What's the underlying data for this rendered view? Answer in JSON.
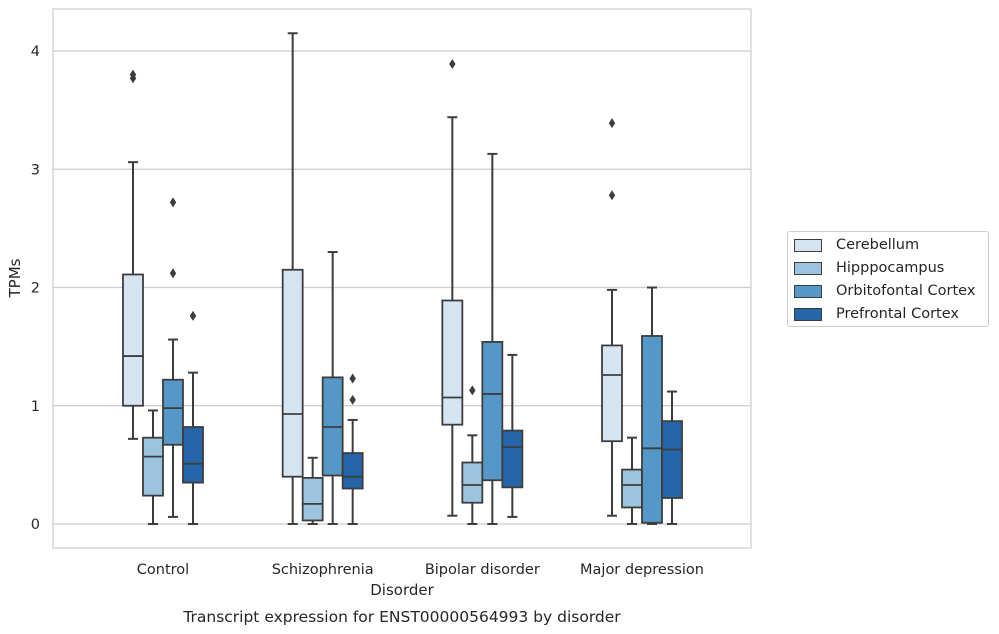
{
  "chart_data": {
    "type": "box",
    "title": "Transcript expression for ENST00000564993 by disorder",
    "xlabel": "Disorder",
    "ylabel": "TPMs",
    "ylim": [
      -0.2,
      4.35
    ],
    "yticks": [
      0,
      1,
      2,
      3,
      4
    ],
    "grid": true,
    "legend_position": "right",
    "categories": [
      "Control",
      "Schizophrenia",
      "Bipolar disorder",
      "Major depression"
    ],
    "series": [
      {
        "name": "Cerebellum",
        "color": "#d4e4f2",
        "boxes": [
          {
            "whisker_low": 0.72,
            "q1": 1.0,
            "median": 1.42,
            "q3": 2.11,
            "whisker_high": 3.06,
            "outliers": [
              3.77,
              3.8
            ]
          },
          {
            "whisker_low": 0.0,
            "q1": 0.4,
            "median": 0.93,
            "q3": 2.15,
            "whisker_high": 4.15,
            "outliers": []
          },
          {
            "whisker_low": 0.07,
            "q1": 0.84,
            "median": 1.07,
            "q3": 1.89,
            "whisker_high": 3.44,
            "outliers": [
              3.89
            ]
          },
          {
            "whisker_low": 0.07,
            "q1": 0.7,
            "median": 1.26,
            "q3": 1.51,
            "whisker_high": 1.98,
            "outliers": [
              2.78,
              3.39
            ]
          }
        ]
      },
      {
        "name": "Hipppocampus",
        "color": "#9dc4de",
        "boxes": [
          {
            "whisker_low": 0.0,
            "q1": 0.24,
            "median": 0.57,
            "q3": 0.73,
            "whisker_high": 0.96,
            "outliers": []
          },
          {
            "whisker_low": 0.0,
            "q1": 0.03,
            "median": 0.17,
            "q3": 0.39,
            "whisker_high": 0.56,
            "outliers": []
          },
          {
            "whisker_low": 0.0,
            "q1": 0.18,
            "median": 0.33,
            "q3": 0.52,
            "whisker_high": 0.75,
            "outliers": [
              1.13
            ]
          },
          {
            "whisker_low": 0.0,
            "q1": 0.14,
            "median": 0.33,
            "q3": 0.46,
            "whisker_high": 0.73,
            "outliers": []
          }
        ]
      },
      {
        "name": "Orbitofontal Cortex",
        "color": "#5597c6",
        "boxes": [
          {
            "whisker_low": 0.06,
            "q1": 0.67,
            "median": 0.98,
            "q3": 1.22,
            "whisker_high": 1.56,
            "outliers": [
              2.12,
              2.72
            ]
          },
          {
            "whisker_low": 0.0,
            "q1": 0.41,
            "median": 0.82,
            "q3": 1.24,
            "whisker_high": 2.3,
            "outliers": []
          },
          {
            "whisker_low": 0.0,
            "q1": 0.37,
            "median": 1.1,
            "q3": 1.54,
            "whisker_high": 3.13,
            "outliers": []
          },
          {
            "whisker_low": 0.0,
            "q1": 0.01,
            "median": 0.64,
            "q3": 1.59,
            "whisker_high": 2.0,
            "outliers": []
          }
        ]
      },
      {
        "name": "Prefrontal Cortex",
        "color": "#2466a9",
        "boxes": [
          {
            "whisker_low": 0.0,
            "q1": 0.35,
            "median": 0.51,
            "q3": 0.82,
            "whisker_high": 1.28,
            "outliers": [
              1.76
            ]
          },
          {
            "whisker_low": 0.0,
            "q1": 0.3,
            "median": 0.4,
            "q3": 0.6,
            "whisker_high": 0.88,
            "outliers": [
              1.05,
              1.23
            ]
          },
          {
            "whisker_low": 0.06,
            "q1": 0.31,
            "median": 0.65,
            "q3": 0.79,
            "whisker_high": 1.43,
            "outliers": []
          },
          {
            "whisker_low": 0.0,
            "q1": 0.22,
            "median": 0.63,
            "q3": 0.87,
            "whisker_high": 1.12,
            "outliers": []
          }
        ]
      }
    ]
  }
}
